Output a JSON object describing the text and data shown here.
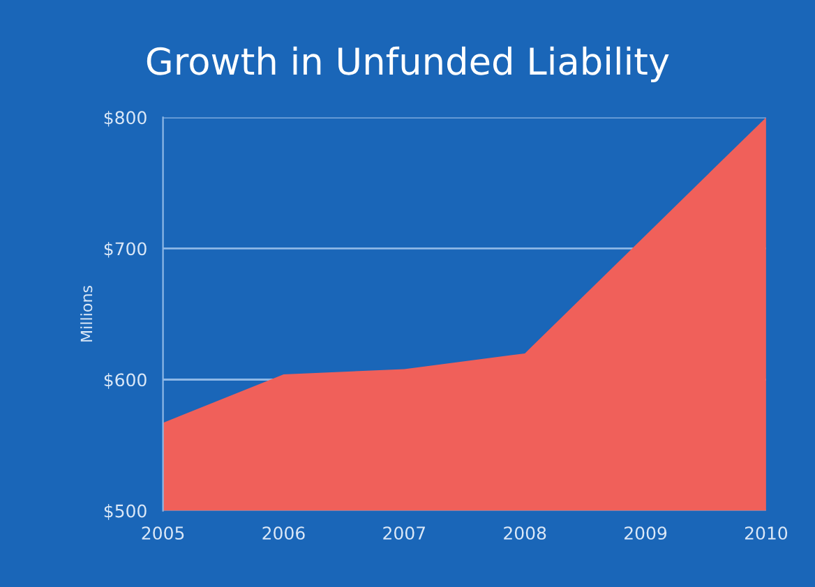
{
  "chart_data": {
    "type": "area",
    "title": "Growth in Unfunded Liability",
    "ylabel": "Millions",
    "categories": [
      "2005",
      "2006",
      "2007",
      "2008",
      "2009",
      "2010"
    ],
    "series": [
      {
        "color": "#f0605a",
        "values": [
          567,
          604,
          608,
          620,
          710,
          800
        ]
      }
    ],
    "ylim": [
      500,
      800
    ],
    "yticks": [
      {
        "value": 500,
        "label": "$500"
      },
      {
        "value": 600,
        "label": "$600"
      },
      {
        "value": 700,
        "label": "$700"
      },
      {
        "value": 800,
        "label": "$800"
      }
    ],
    "grid": "y",
    "legend": false
  }
}
